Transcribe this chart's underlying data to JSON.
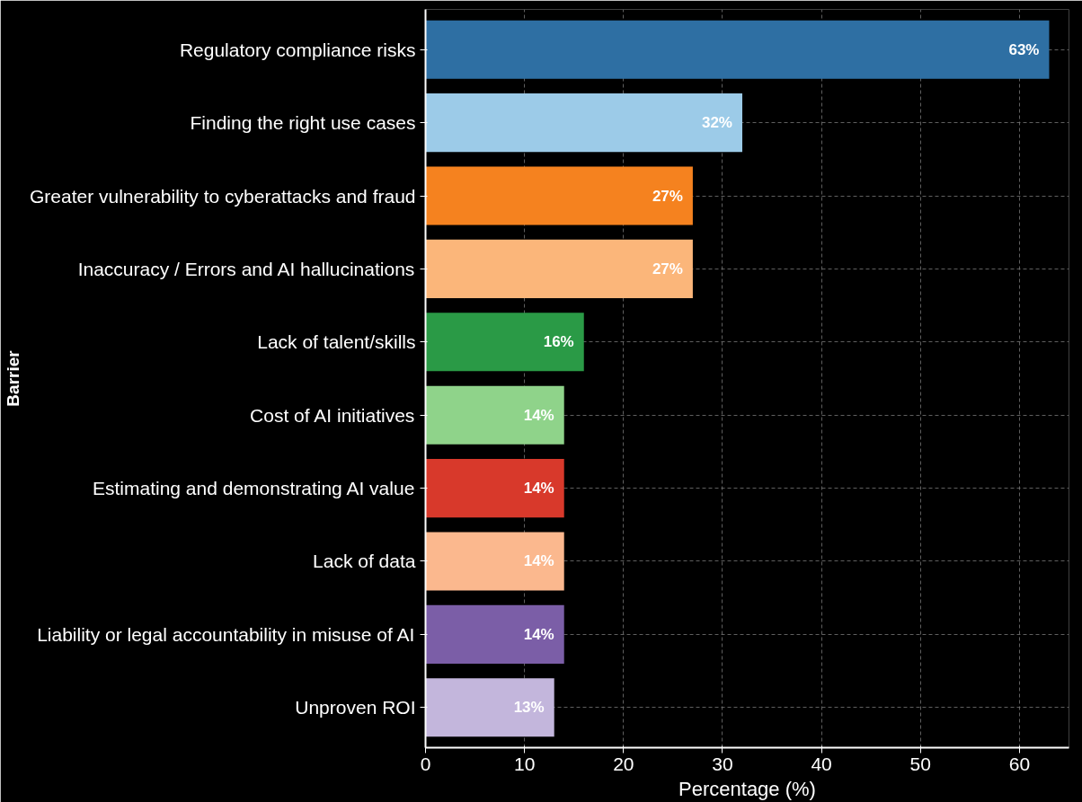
{
  "chart_data": {
    "type": "bar",
    "orientation": "horizontal",
    "xlabel": "Percentage (%)",
    "ylabel": "Barrier",
    "categories": [
      "Regulatory compliance risks",
      "Finding the right use cases",
      "Greater vulnerability to cyberattacks and fraud",
      "Inaccuracy / Errors and AI hallucinations",
      "Lack of talent/skills",
      "Cost of AI initiatives",
      "Estimating and demonstrating AI value",
      "Lack of data",
      "Liability or legal accountability in misuse of AI",
      "Unproven ROI"
    ],
    "values": [
      63,
      32,
      27,
      27,
      16,
      14,
      14,
      14,
      14,
      13
    ],
    "value_labels": [
      "63%",
      "32%",
      "27%",
      "27%",
      "16%",
      "14%",
      "14%",
      "14%",
      "14%",
      "13%"
    ],
    "colors": [
      "#2e6fa3",
      "#9ccbe8",
      "#f5821f",
      "#fbb67a",
      "#2a9a46",
      "#8fd38a",
      "#d8392b",
      "#fbb88e",
      "#7b5ea7",
      "#c3b6dc"
    ],
    "xlim": [
      0,
      65
    ],
    "xticks": [
      0,
      10,
      20,
      30,
      40,
      50,
      60
    ],
    "grid": true
  }
}
